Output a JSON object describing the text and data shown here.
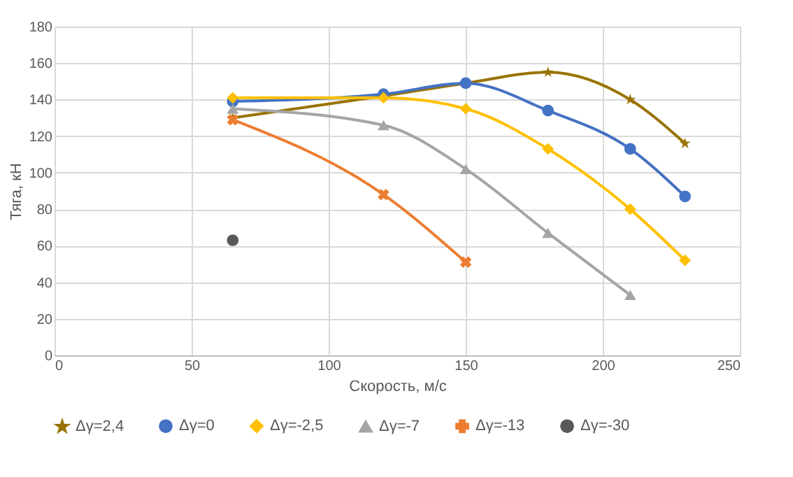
{
  "chart_data": {
    "type": "line",
    "xlabel": "Скорость, м/с",
    "ylabel": "Тяга, кН",
    "xlim": [
      0,
      250
    ],
    "xticks": [
      0,
      50,
      100,
      150,
      200,
      250
    ],
    "ylim": [
      0,
      180
    ],
    "yticks": [
      0,
      20,
      40,
      60,
      80,
      100,
      120,
      140,
      160,
      180
    ],
    "grid": true,
    "legend": "bottom",
    "series": [
      {
        "name": "Δγ=2,4",
        "color": "#997300",
        "marker": "star",
        "x": [
          65,
          120,
          150,
          180,
          210,
          230
        ],
        "values": [
          130,
          142,
          149,
          155,
          140,
          116
        ]
      },
      {
        "name": "Δγ=0",
        "color": "#4472c4",
        "marker": "circle",
        "x": [
          65,
          120,
          150,
          180,
          210,
          230
        ],
        "values": [
          139,
          143,
          149,
          134,
          113,
          87
        ]
      },
      {
        "name": "Δγ=-2,5",
        "color": "#ffc000",
        "marker": "diamond",
        "x": [
          65,
          120,
          150,
          180,
          210,
          230
        ],
        "values": [
          141,
          141,
          135,
          113,
          80,
          52
        ]
      },
      {
        "name": "Δγ=-7",
        "color": "#a5a5a5",
        "marker": "triangle",
        "x": [
          65,
          120,
          150,
          180,
          210
        ],
        "values": [
          135,
          126,
          102,
          67,
          33
        ]
      },
      {
        "name": "Δγ=-13",
        "color": "#ed7d31",
        "marker": "cross",
        "x": [
          65,
          120,
          150
        ],
        "values": [
          129,
          88,
          51
        ]
      },
      {
        "name": "Δγ=-30",
        "color": "#595959",
        "marker": "circle",
        "x": [
          65
        ],
        "values": [
          63
        ]
      }
    ]
  }
}
